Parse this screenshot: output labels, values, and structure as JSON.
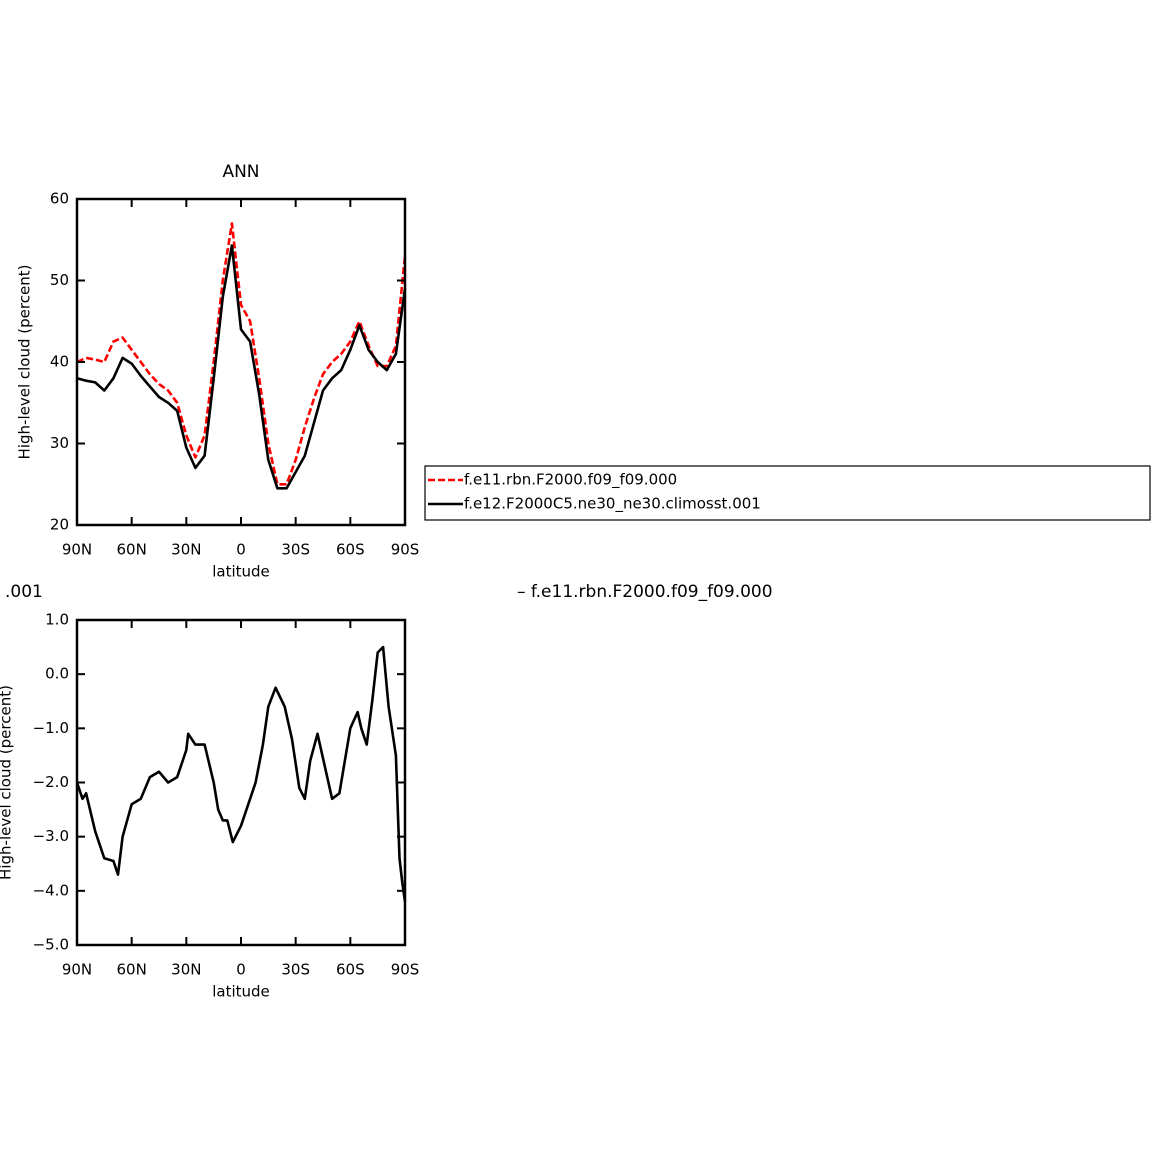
{
  "chart_data": [
    {
      "type": "line",
      "title": "ANN",
      "xlabel": "latitude",
      "ylabel": "High-level cloud  (percent)",
      "x": [
        90,
        85,
        80,
        75,
        70,
        65,
        60,
        55,
        50,
        45,
        40,
        35,
        30,
        25,
        20,
        15,
        10,
        5,
        0,
        -5,
        -10,
        -15,
        -20,
        -25,
        -30,
        -35,
        -40,
        -45,
        -50,
        -55,
        -60,
        -65,
        -70,
        -75,
        -80,
        -85,
        -90
      ],
      "series": [
        {
          "name": "f.e11.rbn.F2000.f09_f09.000",
          "color": "#ff0000",
          "dash": true,
          "values": [
            40,
            40.5,
            40.3,
            40,
            42.5,
            43,
            41.5,
            40,
            38.5,
            37.3,
            36.5,
            35,
            31,
            28.3,
            31,
            40,
            50,
            57,
            47,
            45,
            38,
            30,
            25,
            25,
            28,
            32,
            35.5,
            38.5,
            40,
            41,
            42.5,
            45,
            42,
            39.5,
            39.5,
            42,
            53
          ]
        },
        {
          "name": "f.e12.F2000C5.ne30_ne30.climosst.001",
          "color": "#000000",
          "dash": false,
          "values": [
            38,
            37.7,
            37.5,
            36.5,
            38,
            40.5,
            39.8,
            38.3,
            37,
            35.7,
            35,
            34,
            29.5,
            27,
            28.5,
            38,
            48,
            54.3,
            44,
            42.5,
            36,
            28,
            24.5,
            24.5,
            26.5,
            28.5,
            32.5,
            36.5,
            38,
            39,
            41.5,
            44.5,
            41.5,
            40,
            39,
            41,
            49
          ]
        }
      ],
      "xlim": [
        90,
        -90
      ],
      "xticks": [
        {
          "value": 90,
          "label": "90N"
        },
        {
          "value": 60,
          "label": "60N"
        },
        {
          "value": 30,
          "label": "30N"
        },
        0,
        {
          "value": -30,
          "label": "30S"
        },
        {
          "value": -60,
          "label": "60S"
        },
        {
          "value": -90,
          "label": "90S"
        }
      ],
      "ylim": [
        20,
        60
      ],
      "yticks": [
        20,
        30,
        40,
        50,
        60
      ],
      "legend": "right"
    },
    {
      "type": "line",
      "title_left": ".001",
      "title_right": "– f.e11.rbn.F2000.f09_f09.000",
      "xlabel": "latitude",
      "ylabel": "High-level cloud  (percent)",
      "x": [
        90,
        87,
        85,
        80,
        75,
        70,
        67.5,
        65,
        60,
        55,
        50,
        45,
        40,
        35,
        30,
        29,
        25,
        20,
        15,
        12.5,
        10,
        7.5,
        4.5,
        0,
        -4,
        -8,
        -12,
        -15,
        -19,
        -24,
        -28,
        -32,
        -35,
        -38,
        -42,
        -46,
        -50,
        -54,
        -60,
        -64,
        -66,
        -69,
        -72,
        -75,
        -78,
        -81,
        -85,
        -87,
        -88.5,
        -90
      ],
      "series": [
        {
          "color": "#000000",
          "dash": false,
          "values": [
            -2.0,
            -2.3,
            -2.2,
            -2.9,
            -3.4,
            -3.45,
            -3.7,
            -3.0,
            -2.4,
            -2.3,
            -1.9,
            -1.8,
            -2.0,
            -1.9,
            -1.4,
            -1.1,
            -1.3,
            -1.3,
            -2.0,
            -2.5,
            -2.7,
            -2.7,
            -3.1,
            -2.8,
            -2.4,
            -2.0,
            -1.3,
            -0.6,
            -0.25,
            -0.6,
            -1.2,
            -2.1,
            -2.3,
            -1.6,
            -1.1,
            -1.7,
            -2.3,
            -2.2,
            -1.0,
            -0.7,
            -1.0,
            -1.3,
            -0.5,
            0.4,
            0.5,
            -0.6,
            -1.5,
            -3.4,
            -3.85,
            -4.2
          ]
        }
      ],
      "xlim": [
        90,
        -90
      ],
      "xticks": [
        {
          "value": 90,
          "label": "90N"
        },
        {
          "value": 60,
          "label": "60N"
        },
        {
          "value": 30,
          "label": "30N"
        },
        0,
        {
          "value": -30,
          "label": "30S"
        },
        {
          "value": -60,
          "label": "60S"
        },
        {
          "value": -90,
          "label": "90S"
        }
      ],
      "ylim": [
        -5,
        1
      ],
      "yticks": [
        {
          "value": -5,
          "label": "−5.0"
        },
        {
          "value": -4,
          "label": "−4.0"
        },
        {
          "value": -3,
          "label": "−3.0"
        },
        {
          "value": -2,
          "label": "−2.0"
        },
        {
          "value": -1,
          "label": "−1.0"
        },
        {
          "value": 0,
          "label": "0.0"
        },
        {
          "value": 1,
          "label": "1.0"
        }
      ]
    }
  ]
}
